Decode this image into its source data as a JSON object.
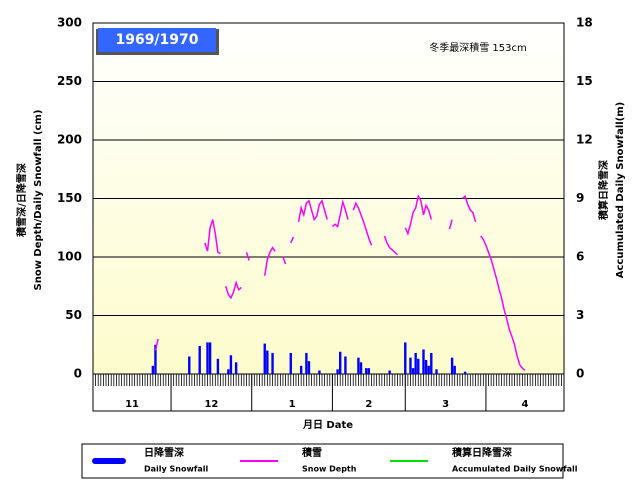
{
  "chart_data": {
    "type": "bar",
    "title": "1969/1970",
    "annotation": "冬季最深積雪 153cm",
    "y_label": [
      "積雪深/日降雪深",
      "Snow Depth/Daily Snowfall (cm)"
    ],
    "y2_label": [
      "積算日降雪深",
      "Accumulated Daily Snowfall(m)"
    ],
    "x_label": "月日 Date",
    "categories": [
      "11",
      "12",
      "1",
      "2",
      "3",
      "4"
    ],
    "xlim": [
      0,
      181
    ],
    "xticks": [
      0,
      30,
      61,
      92,
      120,
      151,
      181
    ],
    "ylim": [
      0,
      300
    ],
    "yticks": [
      0,
      50,
      100,
      150,
      200,
      250,
      300
    ],
    "y2lim": [
      0,
      18
    ],
    "y2ticks": [
      0,
      3,
      6,
      9,
      12,
      15,
      18
    ],
    "grid": true,
    "series": [
      {
        "name": "日降雪深",
        "name_en": "Daily Snowfall",
        "type": "bar",
        "color": "#0000ff",
        "x": [
          23,
          24,
          37,
          41,
          44,
          45,
          48,
          52,
          53,
          55,
          66,
          67,
          69,
          76,
          80,
          82,
          83,
          87,
          94,
          95,
          97,
          102,
          103,
          105,
          106,
          114,
          120,
          122,
          123,
          124,
          125,
          127,
          128,
          129,
          130,
          132,
          138,
          139,
          143
        ],
        "values": [
          7,
          25,
          15,
          24,
          27,
          27,
          13,
          4,
          16,
          10,
          26,
          20,
          18,
          18,
          7,
          18,
          11,
          3,
          4,
          19,
          15,
          14,
          10,
          5,
          5,
          3,
          27,
          14,
          5,
          18,
          13,
          21,
          12,
          7,
          18,
          4,
          14,
          7,
          2
        ]
      },
      {
        "name": "積雪",
        "name_en": "Snow Depth",
        "type": "line",
        "color": "#ff00ff",
        "x": [
          24,
          25,
          26,
          43,
          44,
          45,
          46,
          47,
          48,
          49,
          50,
          51,
          52,
          53,
          54,
          55,
          56,
          57,
          58,
          59,
          60,
          61,
          66,
          67,
          68,
          69,
          70,
          71,
          73,
          74,
          75,
          76,
          77,
          78,
          79,
          80,
          81,
          82,
          83,
          84,
          85,
          86,
          87,
          88,
          89,
          90,
          91,
          92,
          93,
          94,
          95,
          96,
          97,
          98,
          99,
          100,
          101,
          102,
          103,
          104,
          105,
          106,
          107,
          108,
          112,
          113,
          114,
          115,
          116,
          117,
          118,
          120,
          121,
          122,
          123,
          124,
          125,
          126,
          127,
          128,
          129,
          130,
          131,
          137,
          138,
          139,
          142,
          143,
          144,
          145,
          146,
          147,
          148,
          149,
          150,
          151,
          152,
          153,
          154,
          155,
          156,
          157,
          158,
          159,
          160,
          161,
          162,
          163,
          164,
          165,
          166
        ],
        "values": [
          20,
          30,
          null,
          112,
          105,
          125,
          132,
          120,
          104,
          103,
          null,
          75,
          68,
          65,
          70,
          78,
          72,
          74,
          null,
          104,
          97,
          null,
          84,
          98,
          104,
          108,
          105,
          null,
          100,
          94,
          null,
          112,
          117,
          null,
          130,
          142,
          136,
          146,
          148,
          140,
          132,
          135,
          145,
          148,
          140,
          132,
          null,
          126,
          128,
          126,
          136,
          147,
          140,
          132,
          null,
          140,
          146,
          142,
          136,
          130,
          123,
          116,
          110,
          null,
          118,
          112,
          108,
          106,
          104,
          102,
          null,
          125,
          120,
          128,
          138,
          142,
          152,
          148,
          136,
          144,
          140,
          132,
          null,
          124,
          132,
          null,
          150,
          152,
          145,
          140,
          138,
          130,
          null,
          118,
          115,
          110,
          104,
          98,
          90,
          82,
          73,
          65,
          55,
          47,
          38,
          32,
          25,
          15,
          8,
          5,
          3
        ]
      },
      {
        "name": "積算日降雪深",
        "name_en": "Accumulated Daily Snowfall",
        "type": "line",
        "axis": "y2",
        "color": "#00e000",
        "x": [],
        "values": []
      }
    ]
  }
}
